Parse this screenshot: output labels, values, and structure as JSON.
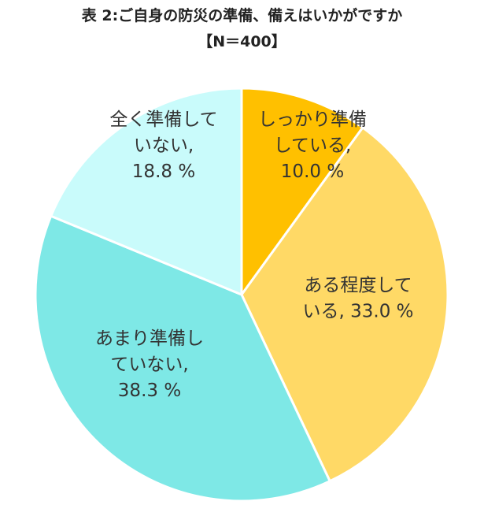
{
  "chart_data": {
    "type": "pie",
    "title": "表 2:ご自身の防災の準備、備えはいかがですか",
    "subtitle": "【N＝400】",
    "slices": [
      {
        "label_lines": [
          "しっかり準備",
          "している,",
          "10.0 %"
        ],
        "value": 10.0,
        "color": "#FFC000"
      },
      {
        "label_lines": [
          "ある程度して",
          "いる, 33.0 %"
        ],
        "value": 33.0,
        "color": "#FFD966"
      },
      {
        "label_lines": [
          "あまり準備し",
          "ていない,",
          "38.3 %"
        ],
        "value": 38.3,
        "color": "#7EE8E6"
      },
      {
        "label_lines": [
          "全く準備して",
          "いない,",
          "18.8 %"
        ],
        "value": 18.8,
        "color": "#C9FBFB"
      }
    ]
  }
}
